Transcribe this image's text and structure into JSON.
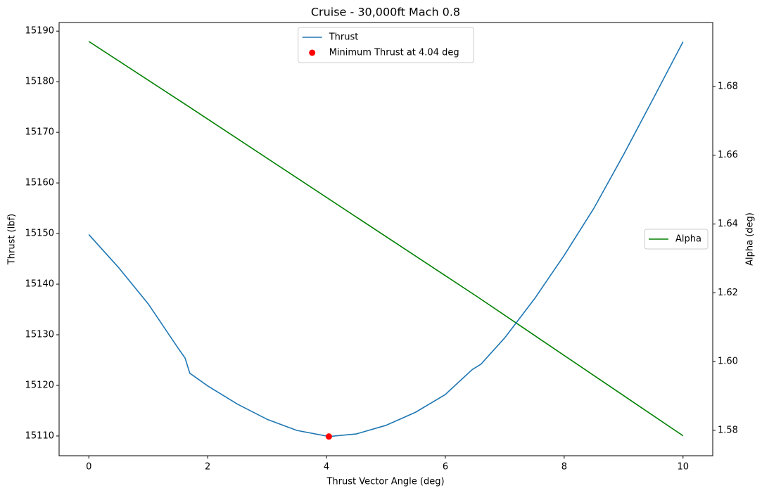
{
  "chart_data": {
    "type": "line",
    "title": "Cruise - 30,000ft Mach 0.8",
    "xlabel": "Thrust Vector Angle (deg)",
    "ylabel": "Thrust (lbf)",
    "y2label": "Alpha (deg)",
    "xlim": [
      -0.5,
      10.5
    ],
    "xticks": [
      0,
      2,
      4,
      6,
      8,
      10
    ],
    "ylim": [
      15106.1,
      15191.7
    ],
    "yticks": [
      15110,
      15120,
      15130,
      15140,
      15150,
      15160,
      15170,
      15180,
      15190
    ],
    "y2lim": [
      1.5726,
      1.6986
    ],
    "y2ticks": [
      1.58,
      {
        "value": 1.6,
        "label": "1.60"
      },
      1.62,
      1.64,
      1.66,
      1.68
    ],
    "legend": "upper center",
    "legend2": "center right",
    "series": [
      {
        "name": "Thrust",
        "type": "line",
        "color": "#1f77b4",
        "x": [
          0,
          0.5,
          1,
          1.5,
          1.62,
          1.7,
          2,
          2.5,
          3,
          3.5,
          4.04,
          4.5,
          5,
          5.5,
          6,
          6.45,
          6.6,
          7,
          7.5,
          8,
          8.5,
          9,
          9.5,
          10
        ],
        "values": [
          15149.8,
          15143.3,
          15136.1,
          15127.4,
          15125.4,
          15122.4,
          15119.9,
          15116.3,
          15113.3,
          15111.1,
          15109.9,
          15110.4,
          15112.1,
          15114.7,
          15118.2,
          15123.1,
          15124.2,
          15129.4,
          15137.1,
          15145.7,
          15155,
          15165.6,
          15176.7,
          15187.9
        ]
      },
      {
        "name": "Minimum Thrust at 4.04 deg",
        "type": "scatter",
        "color": "#ff0000",
        "x": [
          4.04
        ],
        "values": [
          15109.9
        ]
      },
      {
        "name": "Alpha",
        "type": "line",
        "color": "#008000",
        "axis": "y2",
        "x": [
          0,
          1.65,
          6.55,
          10
        ],
        "values": [
          1.6931,
          1.6745,
          1.6187,
          1.5784
        ]
      }
    ]
  }
}
